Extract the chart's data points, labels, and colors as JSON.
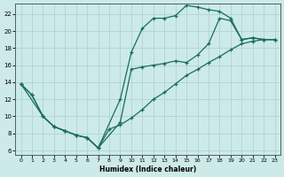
{
  "xlabel": "Humidex (Indice chaleur)",
  "bg_color": "#cceae8",
  "grid_color": "#b0d4d0",
  "line_color": "#1a6b60",
  "xlim": [
    -0.5,
    23.5
  ],
  "ylim": [
    5.5,
    23.2
  ],
  "xticks": [
    0,
    1,
    2,
    3,
    4,
    5,
    6,
    7,
    8,
    9,
    10,
    11,
    12,
    13,
    14,
    15,
    16,
    17,
    18,
    19,
    20,
    21,
    22,
    23
  ],
  "yticks": [
    6,
    8,
    10,
    12,
    14,
    16,
    18,
    20,
    22
  ],
  "line1_x": [
    0,
    1,
    2,
    3,
    4,
    5,
    6,
    7,
    9,
    10,
    11,
    12,
    13,
    14,
    15,
    16,
    17,
    18,
    19,
    20,
    21,
    22,
    23
  ],
  "line1_y": [
    13.8,
    12.5,
    10.0,
    8.8,
    8.3,
    7.8,
    7.5,
    6.3,
    12.0,
    17.5,
    20.3,
    21.5,
    21.5,
    21.8,
    23.0,
    22.8,
    22.5,
    22.3,
    21.5,
    19.0,
    19.2,
    19.0,
    19.0
  ],
  "line2_x": [
    0,
    1,
    2,
    3,
    4,
    5,
    6,
    7,
    9,
    10,
    11,
    12,
    13,
    14,
    15,
    16,
    17,
    18,
    19,
    20,
    21,
    22,
    23
  ],
  "line2_y": [
    13.8,
    12.5,
    10.0,
    8.8,
    8.3,
    7.8,
    7.5,
    6.3,
    9.3,
    15.5,
    15.8,
    16.0,
    16.2,
    16.5,
    16.3,
    17.2,
    18.5,
    21.5,
    21.2,
    19.0,
    19.2,
    19.0,
    19.0
  ],
  "line3_x": [
    0,
    2,
    3,
    4,
    5,
    6,
    7,
    8,
    9,
    10,
    11,
    12,
    13,
    14,
    15,
    16,
    17,
    18,
    19,
    20,
    21,
    22,
    23
  ],
  "line3_y": [
    13.8,
    10.0,
    8.8,
    8.3,
    7.8,
    7.5,
    6.3,
    8.5,
    9.0,
    9.8,
    10.8,
    12.0,
    12.8,
    13.8,
    14.8,
    15.5,
    16.3,
    17.0,
    17.8,
    18.5,
    18.8,
    19.0,
    19.0
  ]
}
